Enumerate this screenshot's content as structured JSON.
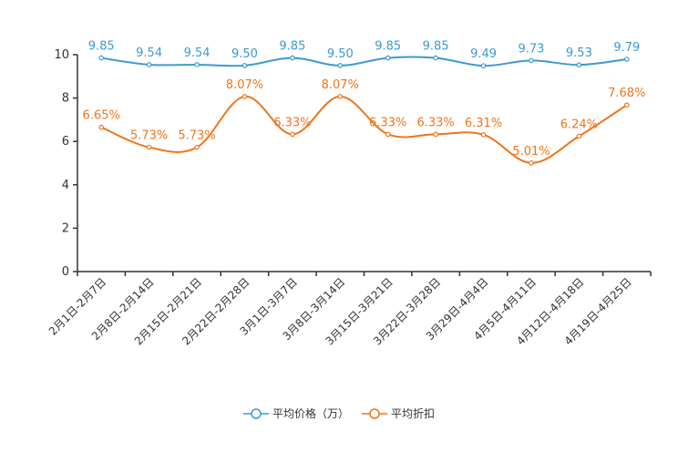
{
  "chart_data": {
    "type": "line",
    "categories": [
      "2月1日-2月7日",
      "2月8日-2月14日",
      "2月15日-2月21日",
      "2月22日-2月28日",
      "3月1日-3月7日",
      "3月8日-3月14日",
      "3月15日-3月21日",
      "3月22日-3月28日",
      "3月29日-4月4日",
      "4月5日-4月11日",
      "4月12日-4月18日",
      "4月19日-4月25日"
    ],
    "ylim": [
      0,
      10
    ],
    "yticks": [
      "0",
      "2",
      "4",
      "6",
      "8",
      "10"
    ],
    "series": [
      {
        "name": "平均价格（万）",
        "color": "#3d9ad1",
        "values": [
          9.85,
          9.54,
          9.54,
          9.5,
          9.85,
          9.5,
          9.85,
          9.85,
          9.49,
          9.73,
          9.53,
          9.79
        ],
        "labels": [
          "9.85",
          "9.54",
          "9.54",
          "9.50",
          "9.85",
          "9.50",
          "9.85",
          "9.85",
          "9.49",
          "9.73",
          "9.53",
          "9.79"
        ]
      },
      {
        "name": "平均折扣",
        "color": "#f0751a",
        "values": [
          6.65,
          5.73,
          5.73,
          8.07,
          6.33,
          8.07,
          6.33,
          6.33,
          6.31,
          5.01,
          6.24,
          7.68
        ],
        "labels": [
          "6.65%",
          "5.73%",
          "5.73%",
          "8.07%",
          "6.33%",
          "8.07%",
          "6.33%",
          "6.33%",
          "6.31%",
          "5.01%",
          "6.24%",
          "7.68%"
        ]
      }
    ]
  }
}
